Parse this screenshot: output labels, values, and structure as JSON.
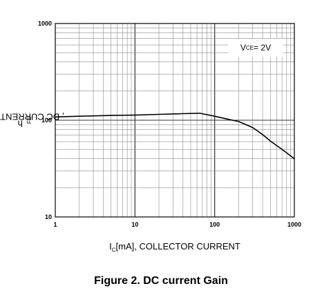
{
  "chart_data": {
    "type": "line",
    "x_scale": "log",
    "y_scale": "log",
    "xlim": [
      1,
      1000
    ],
    "ylim": [
      10,
      1000
    ],
    "grid": true,
    "x_ticks": [
      "1",
      "10",
      "100",
      "1000"
    ],
    "y_ticks": [
      "10",
      "100",
      "1000"
    ],
    "xlabel_main": "I",
    "xlabel_sub": "C",
    "xlabel_rest": "[mA], COLLECTOR CURRENT",
    "ylabel_main": "h",
    "ylabel_sub": "FE",
    "ylabel_rest": ", DC CURRENT GAIN",
    "annotation_main": "V",
    "annotation_sub": "CE",
    "annotation_rest": " = 2V",
    "caption": "Figure 2. DC current Gain",
    "series": [
      {
        "x": [
          1,
          2,
          5,
          10,
          20,
          40,
          65,
          100,
          150,
          200,
          300,
          400,
          500,
          700,
          1000
        ],
        "y": [
          108,
          110,
          112,
          113,
          115,
          117,
          118,
          110,
          102,
          97,
          84,
          71,
          61,
          50,
          40
        ]
      }
    ]
  }
}
